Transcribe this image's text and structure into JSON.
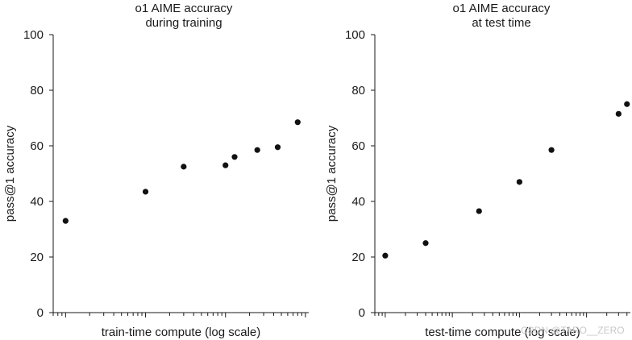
{
  "chart_data": [
    {
      "type": "scatter",
      "title_lines": [
        "o1 AIME accuracy",
        "during training"
      ],
      "xlabel": "train-time compute (log scale)",
      "ylabel": "pass@1 accuracy",
      "ylim": [
        0,
        100
      ],
      "yticks": [
        0,
        20,
        40,
        60,
        80,
        100
      ],
      "xscale": "log",
      "x": [
        1,
        10,
        30,
        100,
        130,
        250,
        450,
        800
      ],
      "y": [
        33,
        43.5,
        52.5,
        53,
        56,
        58.5,
        59.5,
        68.5
      ],
      "grid": false
    },
    {
      "type": "scatter",
      "title_lines": [
        "o1 AIME accuracy",
        "at test time"
      ],
      "xlabel": "test-time compute (log scale)",
      "ylabel": "pass@1 accuracy",
      "ylim": [
        0,
        100
      ],
      "yticks": [
        0,
        20,
        40,
        60,
        80,
        100
      ],
      "xscale": "log",
      "x": [
        1,
        4,
        25,
        100,
        300,
        3000,
        4000
      ],
      "y": [
        20.5,
        25,
        36.5,
        47,
        58.5,
        71.5,
        75
      ],
      "grid": false
    }
  ],
  "watermark": "CSDN @TARO__ZERO"
}
